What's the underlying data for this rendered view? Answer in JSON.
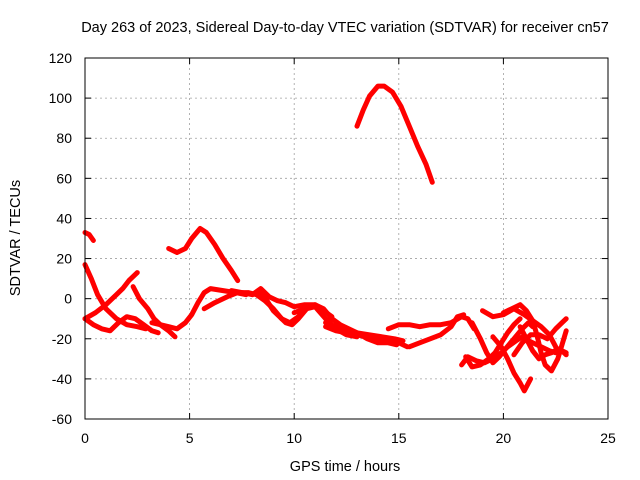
{
  "chart_data": {
    "type": "line",
    "title": "Day 263 of 2023, Sidereal Day-to-day VTEC variation (SDTVAR) for receiver cn57",
    "xlabel": "GPS time / hours",
    "ylabel": "SDTVAR / TECUs",
    "xlim": [
      0,
      25
    ],
    "ylim": [
      -60,
      120
    ],
    "xticks": [
      0,
      5,
      10,
      15,
      20,
      25
    ],
    "yticks": [
      -60,
      -40,
      -20,
      0,
      20,
      40,
      60,
      80,
      100,
      120
    ],
    "grid": true,
    "legend": "none",
    "series_color": "#ff0000",
    "series": [
      {
        "name": "s1",
        "points": [
          [
            0,
            33
          ],
          [
            0.2,
            32
          ],
          [
            0.4,
            29
          ]
        ]
      },
      {
        "name": "s2",
        "points": [
          [
            0,
            17
          ],
          [
            0.3,
            10
          ],
          [
            0.6,
            2
          ],
          [
            1.0,
            -5
          ],
          [
            1.5,
            -10
          ],
          [
            2.0,
            -13
          ],
          [
            2.5,
            -14
          ],
          [
            2.9,
            -15
          ]
        ]
      },
      {
        "name": "s3",
        "points": [
          [
            0,
            -10
          ],
          [
            0.5,
            -7
          ],
          [
            1.0,
            -3
          ],
          [
            1.5,
            2
          ],
          [
            1.8,
            5
          ],
          [
            2.1,
            9
          ],
          [
            2.5,
            13
          ]
        ]
      },
      {
        "name": "s4",
        "points": [
          [
            0,
            -10
          ],
          [
            0.4,
            -13
          ],
          [
            0.8,
            -15
          ],
          [
            1.2,
            -16
          ],
          [
            1.6,
            -12
          ],
          [
            2.0,
            -9
          ],
          [
            2.4,
            -10
          ],
          [
            2.8,
            -13
          ],
          [
            3.2,
            -16
          ],
          [
            3.5,
            -17
          ]
        ]
      },
      {
        "name": "s5",
        "points": [
          [
            2.3,
            6
          ],
          [
            2.6,
            0
          ],
          [
            3.0,
            -5
          ],
          [
            3.3,
            -10
          ],
          [
            3.6,
            -13
          ],
          [
            4.0,
            -16
          ],
          [
            4.3,
            -19
          ]
        ]
      },
      {
        "name": "s6",
        "points": [
          [
            3.2,
            -12
          ],
          [
            3.6,
            -13
          ],
          [
            4.0,
            -14
          ],
          [
            4.4,
            -15
          ],
          [
            4.8,
            -12
          ],
          [
            5.1,
            -8
          ],
          [
            5.4,
            -2
          ],
          [
            5.7,
            3
          ],
          [
            6.0,
            5
          ],
          [
            6.6,
            4
          ],
          [
            7.2,
            3
          ],
          [
            7.7,
            2
          ]
        ]
      },
      {
        "name": "s7",
        "points": [
          [
            4.0,
            25
          ],
          [
            4.4,
            23
          ],
          [
            4.8,
            25
          ],
          [
            5.1,
            30
          ],
          [
            5.5,
            35
          ],
          [
            5.8,
            33
          ],
          [
            6.2,
            27
          ],
          [
            6.6,
            20
          ],
          [
            7.0,
            14
          ],
          [
            7.3,
            9
          ]
        ]
      },
      {
        "name": "s8",
        "points": [
          [
            5.7,
            -5
          ],
          [
            6.2,
            -2
          ],
          [
            6.8,
            1
          ],
          [
            7.3,
            3
          ],
          [
            7.8,
            3
          ],
          [
            8.2,
            2
          ],
          [
            8.6,
            -1
          ],
          [
            9.0,
            -5
          ],
          [
            9.4,
            -10
          ],
          [
            9.8,
            -12
          ],
          [
            10.2,
            -9
          ],
          [
            10.5,
            -5
          ]
        ]
      },
      {
        "name": "s9",
        "points": [
          [
            7.0,
            4
          ],
          [
            7.5,
            3
          ],
          [
            8.0,
            2
          ],
          [
            8.4,
            5
          ],
          [
            8.8,
            1
          ],
          [
            9.2,
            -1
          ],
          [
            9.6,
            -2
          ],
          [
            10.0,
            -4
          ],
          [
            10.5,
            -3
          ],
          [
            11.0,
            -3
          ],
          [
            11.4,
            -6
          ],
          [
            11.8,
            -9
          ]
        ]
      },
      {
        "name": "s10",
        "points": [
          [
            8.3,
            3
          ],
          [
            8.7,
            -1
          ],
          [
            9.0,
            -6
          ],
          [
            9.3,
            -9
          ],
          [
            9.6,
            -12
          ],
          [
            9.9,
            -13
          ],
          [
            10.2,
            -10
          ],
          [
            10.6,
            -5
          ],
          [
            11.0,
            -4
          ]
        ]
      },
      {
        "name": "s11",
        "points": [
          [
            11.0,
            -4
          ],
          [
            11.5,
            -10
          ],
          [
            12.0,
            -15
          ],
          [
            12.5,
            -18
          ],
          [
            13.0,
            -19
          ]
        ]
      },
      {
        "name": "s12",
        "points": [
          [
            10.0,
            -7
          ],
          [
            10.5,
            -5
          ],
          [
            11.0,
            -3
          ],
          [
            11.4,
            -5
          ],
          [
            11.8,
            -10
          ],
          [
            12.2,
            -13
          ],
          [
            12.6,
            -15
          ],
          [
            13.0,
            -17
          ],
          [
            13.6,
            -18
          ],
          [
            14.2,
            -19
          ],
          [
            14.8,
            -20
          ],
          [
            15.2,
            -21
          ]
        ]
      },
      {
        "name": "s13",
        "points": [
          [
            11.5,
            -14
          ],
          [
            12.0,
            -16
          ],
          [
            12.5,
            -17
          ],
          [
            13.0,
            -18
          ],
          [
            13.5,
            -19
          ],
          [
            14.0,
            -20
          ],
          [
            14.5,
            -20
          ]
        ]
      },
      {
        "name": "s14",
        "points": [
          [
            12.0,
            -13
          ],
          [
            12.5,
            -15
          ],
          [
            13.0,
            -17
          ],
          [
            13.5,
            -20
          ],
          [
            14.0,
            -22
          ],
          [
            14.5,
            -22
          ],
          [
            14.9,
            -23
          ]
        ]
      },
      {
        "name": "s15",
        "points": [
          [
            11.5,
            -12
          ],
          [
            12.0,
            -14
          ],
          [
            12.5,
            -16
          ],
          [
            13.0,
            -18
          ],
          [
            13.5,
            -19
          ],
          [
            14.0,
            -20
          ],
          [
            14.5,
            -21
          ],
          [
            15.0,
            -22
          ],
          [
            15.4,
            -24
          ]
        ]
      },
      {
        "name": "s16",
        "points": [
          [
            13.0,
            86
          ],
          [
            13.3,
            94
          ],
          [
            13.6,
            101
          ],
          [
            14.0,
            106
          ],
          [
            14.3,
            106
          ],
          [
            14.7,
            103
          ],
          [
            15.1,
            96
          ],
          [
            15.5,
            86
          ],
          [
            15.9,
            76
          ],
          [
            16.3,
            67
          ],
          [
            16.6,
            58
          ]
        ]
      },
      {
        "name": "s17",
        "points": [
          [
            14.5,
            -15
          ],
          [
            15.0,
            -13
          ],
          [
            15.5,
            -13
          ],
          [
            16.0,
            -14
          ],
          [
            16.5,
            -13
          ],
          [
            17.0,
            -13
          ],
          [
            17.5,
            -12
          ],
          [
            18.0,
            -9
          ],
          [
            18.3,
            -10
          ],
          [
            18.6,
            -15
          ]
        ]
      },
      {
        "name": "s18",
        "points": [
          [
            15.5,
            -24
          ],
          [
            16.0,
            -22
          ],
          [
            16.5,
            -20
          ],
          [
            17.0,
            -18
          ],
          [
            17.5,
            -14
          ],
          [
            17.8,
            -9
          ],
          [
            18.1,
            -8
          ]
        ]
      },
      {
        "name": "s19",
        "points": [
          [
            18.5,
            -12
          ],
          [
            18.9,
            -20
          ],
          [
            19.2,
            -27
          ],
          [
            19.5,
            -32
          ],
          [
            19.8,
            -29
          ],
          [
            20.1,
            -25
          ],
          [
            20.5,
            -20
          ],
          [
            20.9,
            -15
          ],
          [
            21.2,
            -12
          ],
          [
            21.4,
            -14
          ]
        ]
      },
      {
        "name": "s20",
        "points": [
          [
            18.0,
            -33
          ],
          [
            18.3,
            -29
          ],
          [
            18.7,
            -31
          ],
          [
            19.1,
            -32
          ],
          [
            19.5,
            -30
          ],
          [
            19.9,
            -27
          ],
          [
            20.2,
            -24
          ],
          [
            20.6,
            -21
          ],
          [
            20.9,
            -19
          ]
        ]
      },
      {
        "name": "s21",
        "points": [
          [
            18.2,
            -29
          ],
          [
            18.5,
            -34
          ],
          [
            18.9,
            -33
          ],
          [
            19.3,
            -30
          ],
          [
            19.6,
            -27
          ],
          [
            19.9,
            -22
          ],
          [
            20.2,
            -17
          ],
          [
            20.5,
            -13
          ],
          [
            20.8,
            -10
          ]
        ]
      },
      {
        "name": "s22",
        "points": [
          [
            19.0,
            -6
          ],
          [
            19.5,
            -9
          ],
          [
            20.0,
            -8
          ],
          [
            20.5,
            -5
          ],
          [
            21.0,
            -8
          ],
          [
            21.4,
            -11
          ],
          [
            21.8,
            -14
          ],
          [
            22.2,
            -18
          ],
          [
            22.5,
            -24
          ]
        ]
      },
      {
        "name": "s23",
        "points": [
          [
            19.5,
            -19
          ],
          [
            19.9,
            -24
          ],
          [
            20.2,
            -30
          ],
          [
            20.5,
            -37
          ],
          [
            20.8,
            -42
          ],
          [
            21.0,
            -46
          ],
          [
            21.3,
            -40
          ]
        ]
      },
      {
        "name": "s24",
        "points": [
          [
            20.0,
            -7
          ],
          [
            20.4,
            -5
          ],
          [
            20.8,
            -3
          ],
          [
            21.1,
            -6
          ],
          [
            21.4,
            -11
          ],
          [
            21.6,
            -18
          ],
          [
            21.8,
            -27
          ],
          [
            22.0,
            -33
          ],
          [
            22.3,
            -36
          ],
          [
            22.6,
            -30
          ],
          [
            22.8,
            -23
          ],
          [
            23.0,
            -16
          ]
        ]
      },
      {
        "name": "s25",
        "points": [
          [
            20.8,
            -14
          ],
          [
            21.1,
            -20
          ],
          [
            21.4,
            -26
          ],
          [
            21.7,
            -30
          ],
          [
            22.0,
            -28
          ],
          [
            22.3,
            -27
          ],
          [
            22.6,
            -25
          ],
          [
            22.9,
            -27
          ],
          [
            23.0,
            -28
          ]
        ]
      },
      {
        "name": "s26",
        "points": [
          [
            20.5,
            -28
          ],
          [
            20.9,
            -22
          ],
          [
            21.3,
            -18
          ],
          [
            21.7,
            -18
          ],
          [
            22.1,
            -20
          ],
          [
            22.5,
            -15
          ],
          [
            22.8,
            -12
          ],
          [
            23.0,
            -10
          ]
        ]
      },
      {
        "name": "s27",
        "points": [
          [
            21.0,
            -20
          ],
          [
            21.4,
            -22
          ],
          [
            21.8,
            -24
          ],
          [
            22.2,
            -26
          ],
          [
            22.5,
            -27
          ],
          [
            22.8,
            -26
          ],
          [
            23.0,
            -27
          ]
        ]
      }
    ]
  }
}
